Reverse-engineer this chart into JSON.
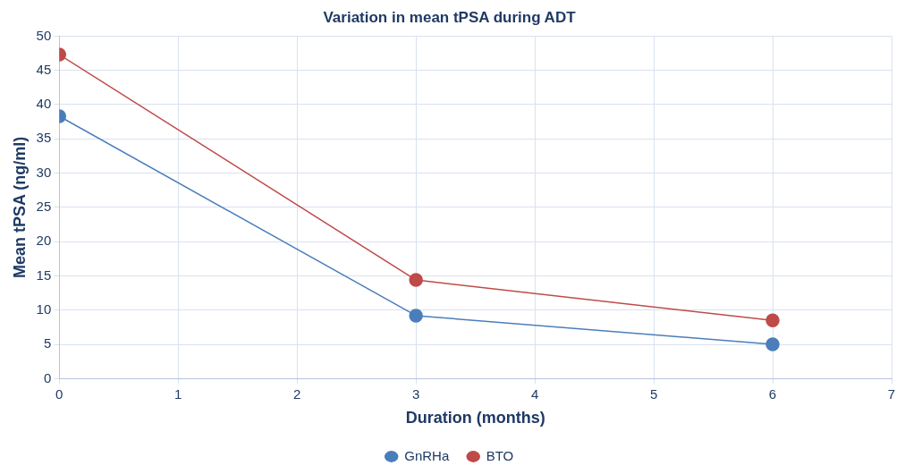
{
  "chart_data": {
    "type": "line",
    "title": "Variation in mean tPSA during ADT",
    "xlabel": "Duration (months)",
    "ylabel": "Mean tPSA (ng/ml)",
    "x": [
      0,
      3,
      6
    ],
    "series": [
      {
        "name": "GnRHa",
        "color": "#4a7ebb",
        "values": [
          38.3,
          9.2,
          5.0
        ]
      },
      {
        "name": "BTO",
        "color": "#be4b48",
        "values": [
          47.3,
          14.4,
          8.5
        ]
      }
    ],
    "xlim": [
      0,
      7
    ],
    "xticks": [
      0,
      1,
      2,
      3,
      4,
      5,
      6,
      7
    ],
    "ylim": [
      0,
      50
    ],
    "yticks": [
      0,
      5,
      10,
      15,
      20,
      25,
      30,
      35,
      40,
      45,
      50
    ],
    "grid": true,
    "legend": "bottom",
    "marker": "circle",
    "line_style": "solid"
  }
}
